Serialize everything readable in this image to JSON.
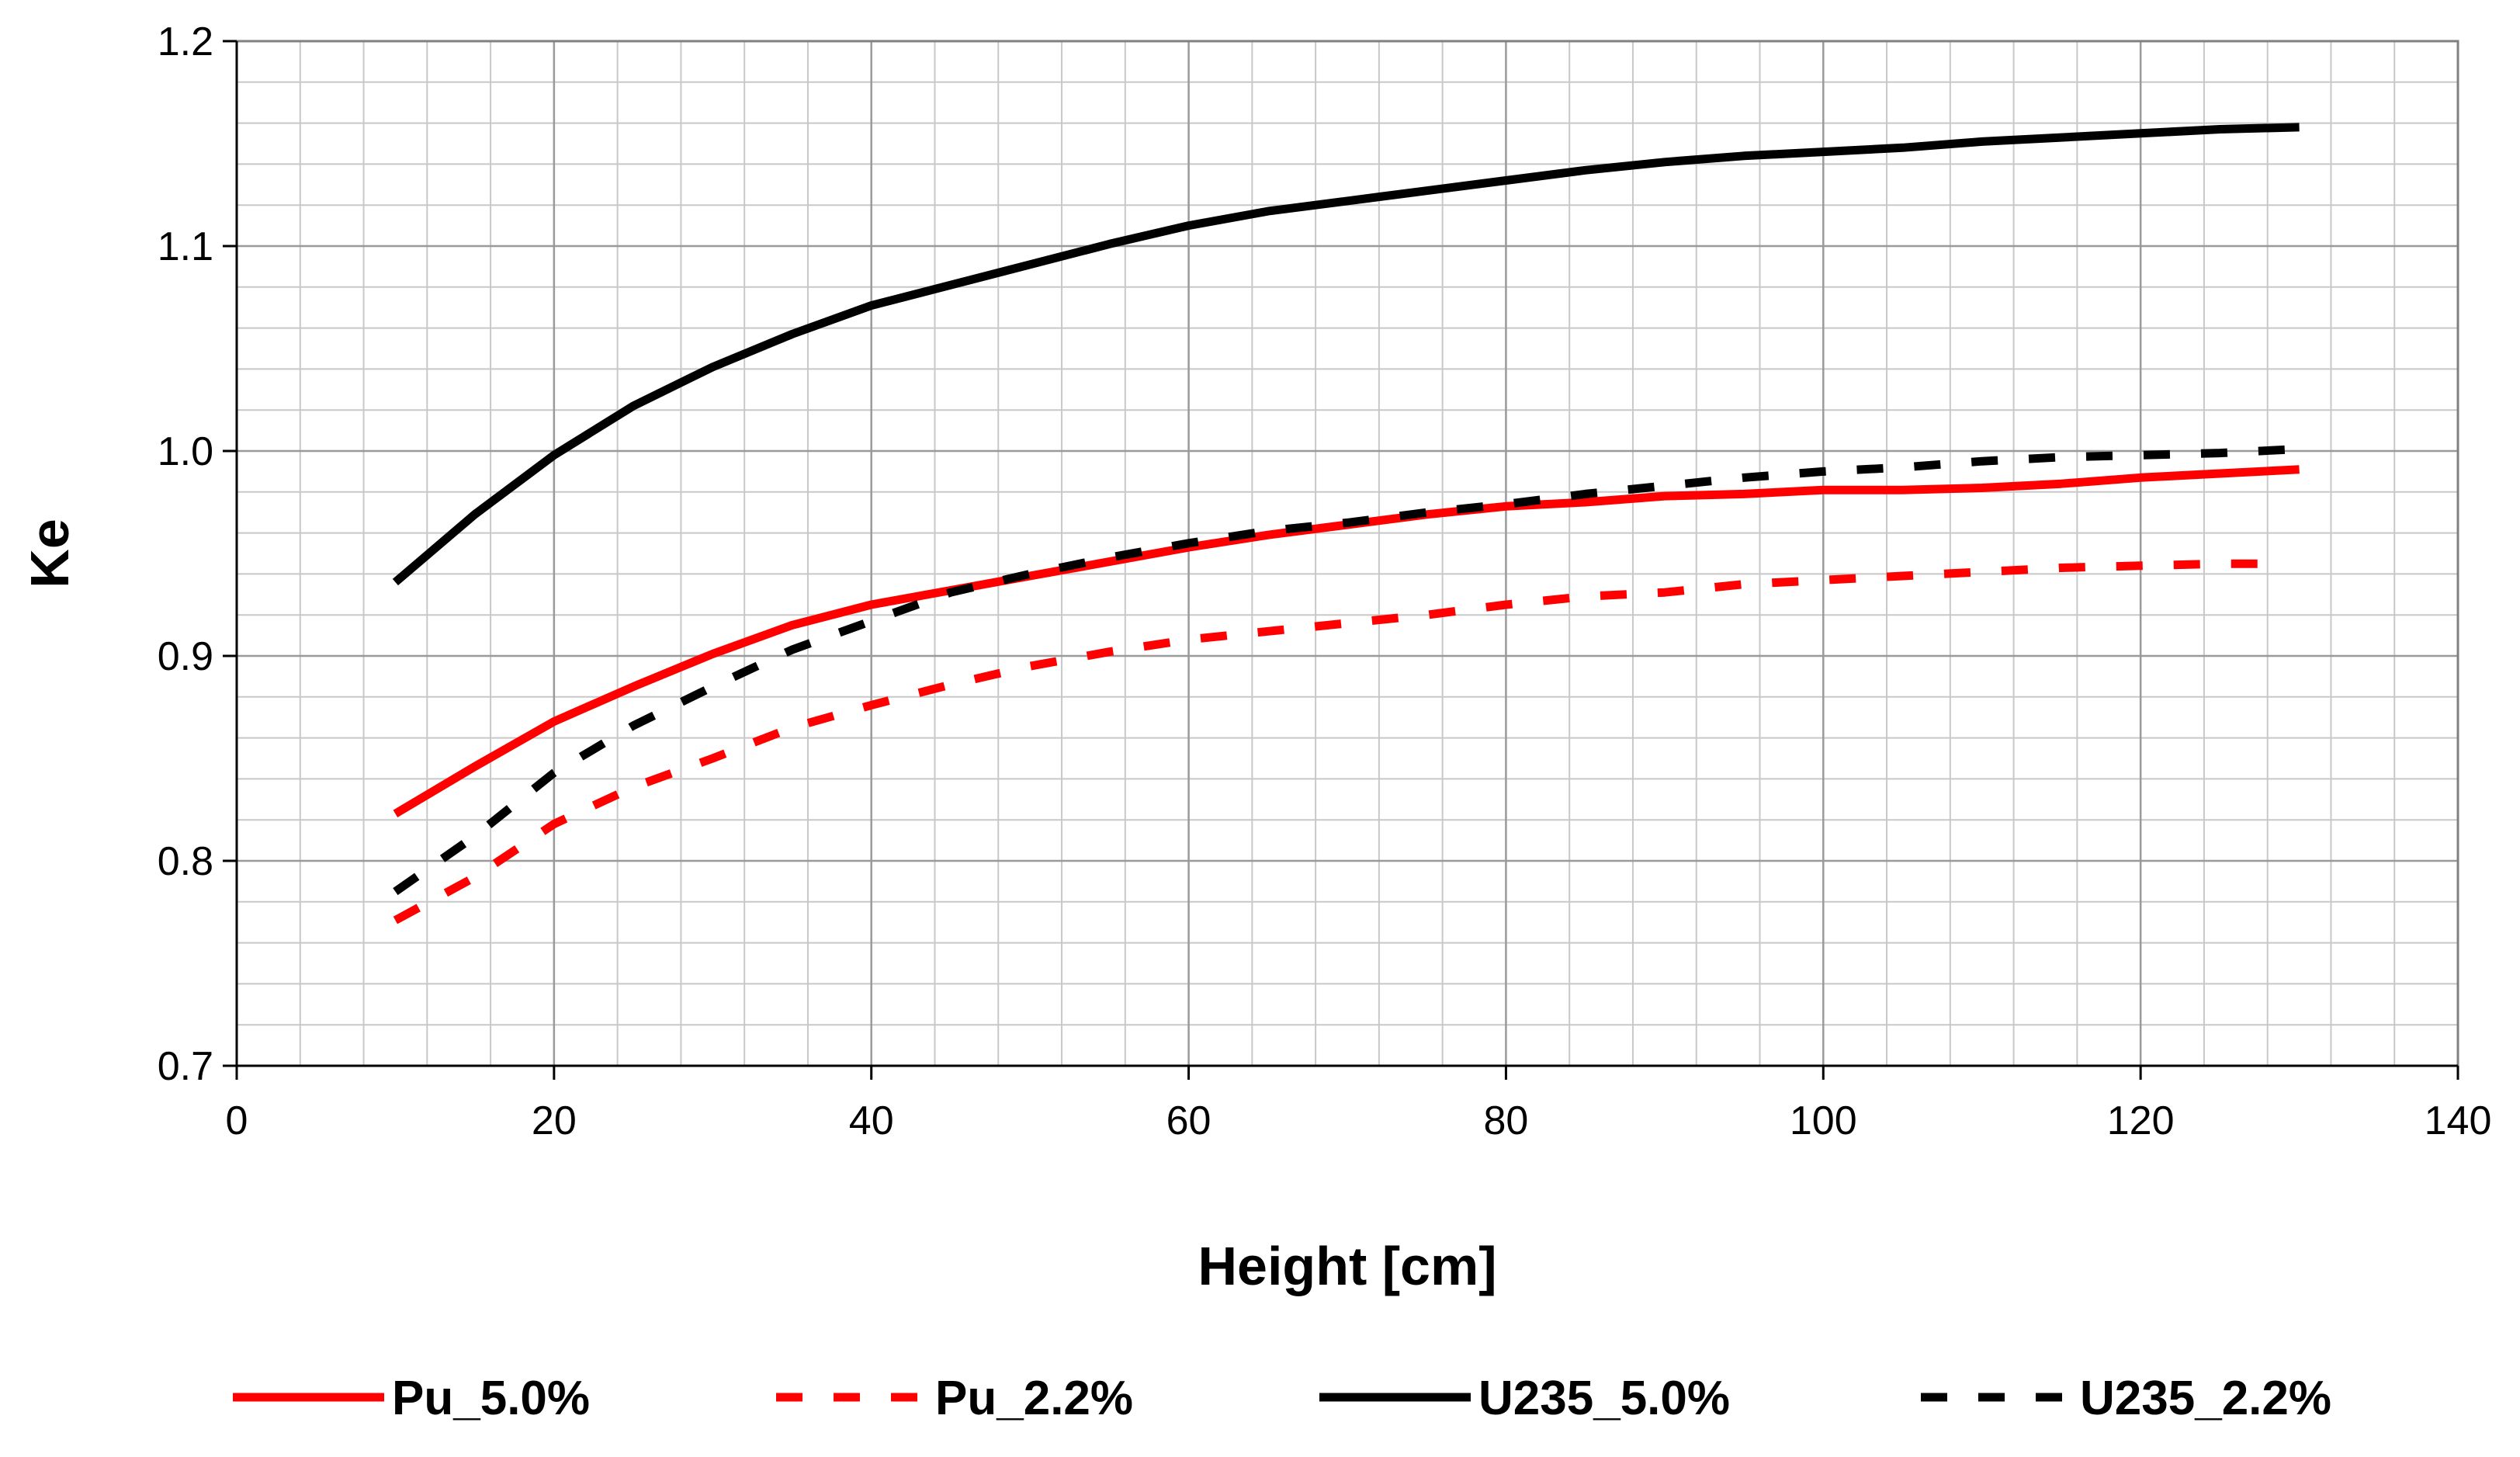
{
  "chart_data": {
    "type": "line",
    "title": "",
    "xlabel": "Height [cm]",
    "ylabel": "Ke",
    "xlim": [
      0,
      140
    ],
    "ylim": [
      0.7,
      1.2
    ],
    "xticks": [
      0,
      20,
      40,
      60,
      80,
      100,
      120,
      140
    ],
    "xtick_labels": [
      "0",
      "20",
      "40",
      "60",
      "80",
      "100",
      "120",
      "140"
    ],
    "yticks": [
      0.7,
      0.8,
      0.9,
      1.0,
      1.1,
      1.2
    ],
    "ytick_labels": [
      "0.7",
      "0.8",
      "0.9",
      "1.0",
      "1.1",
      "1.2"
    ],
    "grid": true,
    "legend_position": "bottom",
    "series": [
      {
        "name": "Pu_5.0%",
        "color": "#ff0000",
        "style": "solid",
        "x": [
          10,
          15,
          20,
          25,
          30,
          35,
          40,
          45,
          50,
          55,
          60,
          65,
          70,
          75,
          80,
          85,
          90,
          95,
          100,
          105,
          110,
          115,
          120,
          125,
          130
        ],
        "y": [
          0.823,
          0.846,
          0.868,
          0.885,
          0.901,
          0.915,
          0.925,
          0.932,
          0.939,
          0.946,
          0.953,
          0.959,
          0.964,
          0.969,
          0.973,
          0.975,
          0.978,
          0.979,
          0.981,
          0.981,
          0.982,
          0.984,
          0.987,
          0.989,
          0.991
        ]
      },
      {
        "name": "Pu_2.2%",
        "color": "#ff0000",
        "style": "dashed",
        "x": [
          10,
          15,
          20,
          25,
          30,
          35,
          40,
          45,
          50,
          55,
          60,
          65,
          70,
          75,
          80,
          85,
          90,
          95,
          100,
          105,
          110,
          115,
          120,
          125,
          128
        ],
        "y": [
          0.771,
          0.792,
          0.818,
          0.836,
          0.85,
          0.865,
          0.876,
          0.886,
          0.895,
          0.902,
          0.908,
          0.912,
          0.916,
          0.92,
          0.925,
          0.929,
          0.931,
          0.935,
          0.937,
          0.939,
          0.941,
          0.943,
          0.944,
          0.945,
          0.945
        ]
      },
      {
        "name": "U235_5.0%",
        "color": "#000000",
        "style": "solid",
        "x": [
          10,
          15,
          20,
          25,
          30,
          35,
          40,
          45,
          50,
          55,
          60,
          65,
          70,
          75,
          80,
          85,
          90,
          95,
          100,
          105,
          110,
          115,
          120,
          125,
          130
        ],
        "y": [
          0.936,
          0.969,
          0.998,
          1.022,
          1.041,
          1.057,
          1.071,
          1.081,
          1.091,
          1.101,
          1.11,
          1.117,
          1.122,
          1.127,
          1.132,
          1.137,
          1.141,
          1.144,
          1.146,
          1.148,
          1.151,
          1.153,
          1.155,
          1.157,
          1.158
        ]
      },
      {
        "name": "U235_2.2%",
        "color": "#000000",
        "style": "dashed",
        "x": [
          10,
          15,
          20,
          25,
          30,
          35,
          40,
          45,
          50,
          55,
          60,
          65,
          70,
          75,
          80,
          85,
          90,
          95,
          100,
          105,
          110,
          115,
          120,
          125,
          130
        ],
        "y": [
          0.785,
          0.812,
          0.843,
          0.866,
          0.885,
          0.903,
          0.917,
          0.931,
          0.94,
          0.948,
          0.955,
          0.961,
          0.965,
          0.97,
          0.974,
          0.979,
          0.983,
          0.987,
          0.99,
          0.992,
          0.995,
          0.997,
          0.998,
          0.999,
          1.001
        ]
      }
    ]
  }
}
